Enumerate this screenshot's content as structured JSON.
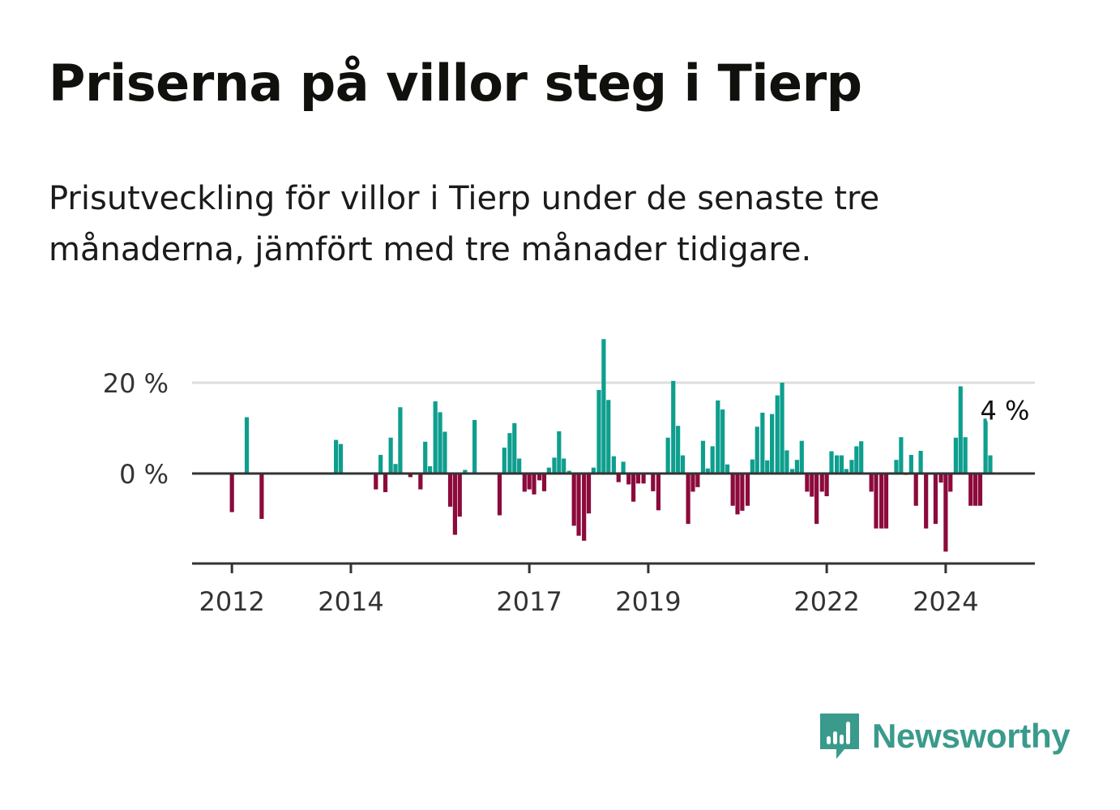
{
  "title": "Priserna på villor steg i Tierp",
  "subtitle": "Prisutveckling för villor i Tierp under de senaste tre månaderna, jämfört med tre månader tidigare.",
  "brand": {
    "name": "Newsworthy",
    "icon": "newsworthy-logo-icon",
    "color": "#3a9a8c"
  },
  "colors": {
    "positive": "#0e9e8e",
    "negative": "#8c0a3c",
    "grid": "#dddddd",
    "axis": "#333333"
  },
  "chart_data": {
    "type": "bar",
    "title": "Priserna på villor steg i Tierp",
    "xlabel": "",
    "ylabel": "",
    "unit": "%",
    "ylim": [
      -20,
      30
    ],
    "yticks": [
      {
        "value": 0,
        "label": "0 %"
      },
      {
        "value": 20,
        "label": "20 %"
      }
    ],
    "xticks": [
      {
        "value": 2012,
        "label": "2012"
      },
      {
        "value": 2014,
        "label": "2014"
      },
      {
        "value": 2017,
        "label": "2017"
      },
      {
        "value": 2019,
        "label": "2019"
      },
      {
        "value": 2022,
        "label": "2022"
      },
      {
        "value": 2024,
        "label": "2024"
      }
    ],
    "xlim": [
      2011.33,
      2025.5
    ],
    "series": [
      {
        "name": "Prisutveckling",
        "points": [
          {
            "x": 2012.0,
            "value": -8.5
          },
          {
            "x": 2012.25,
            "value": 12.4
          },
          {
            "x": 2012.5,
            "value": -10
          },
          {
            "x": 2013.75,
            "value": 7.4
          },
          {
            "x": 2013.83,
            "value": 6.5
          },
          {
            "x": 2014.42,
            "value": -3.5
          },
          {
            "x": 2014.5,
            "value": 4.1
          },
          {
            "x": 2014.58,
            "value": -4.1
          },
          {
            "x": 2014.67,
            "value": 7.9
          },
          {
            "x": 2014.75,
            "value": 2.1
          },
          {
            "x": 2014.83,
            "value": 14.6
          },
          {
            "x": 2015.0,
            "value": -0.8
          },
          {
            "x": 2015.17,
            "value": -3.5
          },
          {
            "x": 2015.25,
            "value": 7.0
          },
          {
            "x": 2015.33,
            "value": 1.6
          },
          {
            "x": 2015.42,
            "value": 15.9
          },
          {
            "x": 2015.5,
            "value": 13.5
          },
          {
            "x": 2015.58,
            "value": 9.2
          },
          {
            "x": 2015.67,
            "value": -7.3
          },
          {
            "x": 2015.75,
            "value": -13.5
          },
          {
            "x": 2015.83,
            "value": -9.5
          },
          {
            "x": 2015.92,
            "value": 0.8
          },
          {
            "x": 2016.08,
            "value": 11.8
          },
          {
            "x": 2016.5,
            "value": -9.2
          },
          {
            "x": 2016.58,
            "value": 5.7
          },
          {
            "x": 2016.67,
            "value": 8.9
          },
          {
            "x": 2016.75,
            "value": 11.1
          },
          {
            "x": 2016.83,
            "value": 3.3
          },
          {
            "x": 2016.92,
            "value": -4.0
          },
          {
            "x": 2017.0,
            "value": -3.5
          },
          {
            "x": 2017.08,
            "value": -4.6
          },
          {
            "x": 2017.17,
            "value": -1.5
          },
          {
            "x": 2017.25,
            "value": -3.9
          },
          {
            "x": 2017.33,
            "value": 1.3
          },
          {
            "x": 2017.42,
            "value": 3.5
          },
          {
            "x": 2017.5,
            "value": 9.3
          },
          {
            "x": 2017.58,
            "value": 3.3
          },
          {
            "x": 2017.67,
            "value": 0.6
          },
          {
            "x": 2017.75,
            "value": -11.5
          },
          {
            "x": 2017.83,
            "value": -13.7
          },
          {
            "x": 2017.92,
            "value": -14.8
          },
          {
            "x": 2018.0,
            "value": -8.8
          },
          {
            "x": 2018.08,
            "value": 1.3
          },
          {
            "x": 2018.17,
            "value": 18.4
          },
          {
            "x": 2018.25,
            "value": 29.6
          },
          {
            "x": 2018.33,
            "value": 16.2
          },
          {
            "x": 2018.42,
            "value": 3.8
          },
          {
            "x": 2018.5,
            "value": -1.9
          },
          {
            "x": 2018.58,
            "value": 2.6
          },
          {
            "x": 2018.67,
            "value": -2.4
          },
          {
            "x": 2018.75,
            "value": -6.2
          },
          {
            "x": 2018.83,
            "value": -2.2
          },
          {
            "x": 2018.92,
            "value": -2.2
          },
          {
            "x": 2019.08,
            "value": -3.9
          },
          {
            "x": 2019.17,
            "value": -8.1
          },
          {
            "x": 2019.33,
            "value": 7.9
          },
          {
            "x": 2019.42,
            "value": 20.4
          },
          {
            "x": 2019.5,
            "value": 10.5
          },
          {
            "x": 2019.58,
            "value": 4.0
          },
          {
            "x": 2019.67,
            "value": -11.1
          },
          {
            "x": 2019.75,
            "value": -4.0
          },
          {
            "x": 2019.83,
            "value": -3.0
          },
          {
            "x": 2019.92,
            "value": 7.2
          },
          {
            "x": 2020.0,
            "value": 1.1
          },
          {
            "x": 2020.08,
            "value": 6.0
          },
          {
            "x": 2020.17,
            "value": 16.1
          },
          {
            "x": 2020.25,
            "value": 14.1
          },
          {
            "x": 2020.33,
            "value": 2.0
          },
          {
            "x": 2020.42,
            "value": -7.1
          },
          {
            "x": 2020.5,
            "value": -9.0
          },
          {
            "x": 2020.58,
            "value": -8.2
          },
          {
            "x": 2020.67,
            "value": -7.1
          },
          {
            "x": 2020.75,
            "value": 3.1
          },
          {
            "x": 2020.83,
            "value": 10.3
          },
          {
            "x": 2020.92,
            "value": 13.4
          },
          {
            "x": 2021.0,
            "value": 2.9
          },
          {
            "x": 2021.08,
            "value": 13.1
          },
          {
            "x": 2021.17,
            "value": 17.2
          },
          {
            "x": 2021.25,
            "value": 20.0
          },
          {
            "x": 2021.33,
            "value": 5.1
          },
          {
            "x": 2021.42,
            "value": 1.0
          },
          {
            "x": 2021.5,
            "value": 3.0
          },
          {
            "x": 2021.58,
            "value": 7.2
          },
          {
            "x": 2021.67,
            "value": -4.0
          },
          {
            "x": 2021.75,
            "value": -5.1
          },
          {
            "x": 2021.83,
            "value": -11.1
          },
          {
            "x": 2021.92,
            "value": -4.0
          },
          {
            "x": 2022.0,
            "value": -5.0
          },
          {
            "x": 2022.08,
            "value": 4.9
          },
          {
            "x": 2022.17,
            "value": 4.0
          },
          {
            "x": 2022.25,
            "value": 4.0
          },
          {
            "x": 2022.33,
            "value": 1.0
          },
          {
            "x": 2022.42,
            "value": 3.0
          },
          {
            "x": 2022.5,
            "value": 6.0
          },
          {
            "x": 2022.58,
            "value": 7.1
          },
          {
            "x": 2022.75,
            "value": -4.0
          },
          {
            "x": 2022.83,
            "value": -12.1
          },
          {
            "x": 2022.92,
            "value": -12.1
          },
          {
            "x": 2023.0,
            "value": -12.1
          },
          {
            "x": 2023.17,
            "value": 3.0
          },
          {
            "x": 2023.25,
            "value": 8.0
          },
          {
            "x": 2023.33,
            "value": -0.3
          },
          {
            "x": 2023.42,
            "value": 4.1
          },
          {
            "x": 2023.5,
            "value": -7.1
          },
          {
            "x": 2023.58,
            "value": 5.0
          },
          {
            "x": 2023.67,
            "value": -12.1
          },
          {
            "x": 2023.83,
            "value": -11.1
          },
          {
            "x": 2023.92,
            "value": -2.0
          },
          {
            "x": 2024.0,
            "value": -17.2
          },
          {
            "x": 2024.08,
            "value": -4.0
          },
          {
            "x": 2024.17,
            "value": 7.9
          },
          {
            "x": 2024.25,
            "value": 19.2
          },
          {
            "x": 2024.33,
            "value": 8.0
          },
          {
            "x": 2024.42,
            "value": -7.1
          },
          {
            "x": 2024.5,
            "value": -7.1
          },
          {
            "x": 2024.58,
            "value": -7.1
          },
          {
            "x": 2024.67,
            "value": 12.1
          },
          {
            "x": 2024.75,
            "value": 4.0
          }
        ]
      }
    ],
    "annotation": {
      "x": 2024.75,
      "value": 4.0,
      "label": "4 %"
    }
  }
}
